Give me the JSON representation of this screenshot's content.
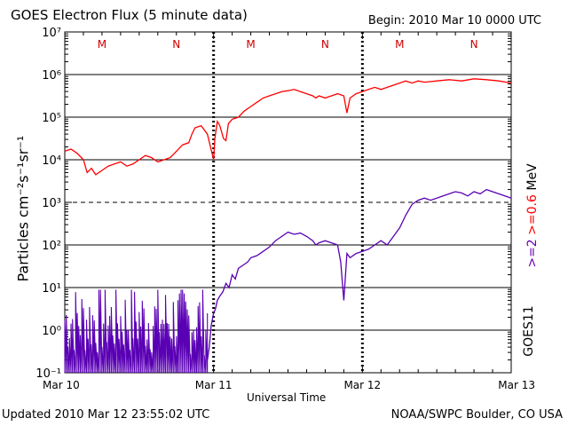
{
  "header": {
    "title": "GOES Electron Flux (5 minute data)",
    "begin": "Begin: 2010 Mar 10 0000 UTC"
  },
  "footer": {
    "updated": "Updated 2010 Mar 12 23:55:02 UTC",
    "credit": "NOAA/SWPC Boulder, CO USA"
  },
  "axis": {
    "xlabel": "Universal Time",
    "ylabel": "Particles cm⁻²s⁻¹sr⁻¹",
    "right_label_1": ">=2",
    "right_label_2": ">=0.6",
    "right_label_3": "MeV",
    "satellite": "GOES11"
  },
  "colors": {
    "low_energy": "#ff0000",
    "high_energy": "#5a00b4",
    "right_label_1": "#6a00b4",
    "right_label_2": "#ff0000",
    "right_label_3": "#000000",
    "marker_text": "#cc0000"
  },
  "chart_data": {
    "type": "line",
    "title": "GOES Electron Flux (5 minute data)",
    "xlabel": "Universal Time",
    "ylabel": "Particles cm⁻²s⁻¹sr⁻¹",
    "x_ticks": [
      "Mar 10",
      "Mar 11",
      "Mar 12",
      "Mar 13"
    ],
    "y_ticks": [
      "10⁻¹",
      "10⁰",
      "10¹",
      "10²",
      "10³",
      "10⁴",
      "10⁵",
      "10⁶",
      "10⁷"
    ],
    "xlim_hours": [
      0,
      72
    ],
    "ylim_log10": [
      -1,
      7
    ],
    "y_scale": "log",
    "threshold_log10": 3,
    "markers": [
      {
        "label": "M",
        "hour": 6
      },
      {
        "label": "N",
        "hour": 18
      },
      {
        "label": "M",
        "hour": 30
      },
      {
        "label": "N",
        "hour": 42
      },
      {
        "label": "M",
        "hour": 54
      },
      {
        "label": "N",
        "hour": 66
      }
    ],
    "series": [
      {
        "name": ">=0.6 MeV",
        "points": [
          [
            0,
            4.2
          ],
          [
            1,
            4.25
          ],
          [
            2,
            4.15
          ],
          [
            3,
            4.0
          ],
          [
            3.6,
            3.7
          ],
          [
            4.3,
            3.8
          ],
          [
            5,
            3.65
          ],
          [
            6,
            3.75
          ],
          [
            7,
            3.85
          ],
          [
            8,
            3.9
          ],
          [
            9,
            3.95
          ],
          [
            10,
            3.85
          ],
          [
            11,
            3.9
          ],
          [
            12,
            4.0
          ],
          [
            13,
            4.1
          ],
          [
            14,
            4.05
          ],
          [
            15,
            3.95
          ],
          [
            16,
            4.0
          ],
          [
            17,
            4.05
          ],
          [
            18,
            4.2
          ],
          [
            19,
            4.35
          ],
          [
            20,
            4.4
          ],
          [
            20.5,
            4.6
          ],
          [
            21,
            4.75
          ],
          [
            22,
            4.8
          ],
          [
            23,
            4.6
          ],
          [
            24,
            4.0
          ],
          [
            24.2,
            4.5
          ],
          [
            24.6,
            4.9
          ],
          [
            25,
            4.8
          ],
          [
            25.6,
            4.5
          ],
          [
            26,
            4.45
          ],
          [
            26.4,
            4.85
          ],
          [
            27,
            4.95
          ],
          [
            28,
            5.0
          ],
          [
            29,
            5.15
          ],
          [
            30,
            5.25
          ],
          [
            31,
            5.35
          ],
          [
            32,
            5.45
          ],
          [
            33,
            5.5
          ],
          [
            34,
            5.55
          ],
          [
            35,
            5.6
          ],
          [
            36,
            5.62
          ],
          [
            37,
            5.65
          ],
          [
            38,
            5.6
          ],
          [
            39,
            5.55
          ],
          [
            40,
            5.5
          ],
          [
            40.5,
            5.45
          ],
          [
            41,
            5.5
          ],
          [
            42,
            5.45
          ],
          [
            43,
            5.5
          ],
          [
            44,
            5.55
          ],
          [
            45,
            5.5
          ],
          [
            45.5,
            5.1
          ],
          [
            46,
            5.45
          ],
          [
            47,
            5.55
          ],
          [
            48,
            5.6
          ],
          [
            49,
            5.65
          ],
          [
            50,
            5.7
          ],
          [
            51,
            5.65
          ],
          [
            52,
            5.7
          ],
          [
            53,
            5.75
          ],
          [
            54,
            5.8
          ],
          [
            55,
            5.85
          ],
          [
            56,
            5.8
          ],
          [
            57,
            5.85
          ],
          [
            58,
            5.82
          ],
          [
            60,
            5.85
          ],
          [
            62,
            5.88
          ],
          [
            64,
            5.85
          ],
          [
            66,
            5.9
          ],
          [
            68,
            5.88
          ],
          [
            70,
            5.85
          ],
          [
            72,
            5.8
          ]
        ]
      },
      {
        "name": ">=2 MeV",
        "points": [
          [
            23,
            -0.7
          ],
          [
            23.3,
            -0.4
          ],
          [
            23.6,
            0.1
          ],
          [
            24,
            0.4
          ],
          [
            24.3,
            0.5
          ],
          [
            24.6,
            0.7
          ],
          [
            25,
            0.8
          ],
          [
            25.5,
            0.9
          ],
          [
            26,
            1.1
          ],
          [
            26.5,
            1.0
          ],
          [
            27,
            1.3
          ],
          [
            27.5,
            1.2
          ],
          [
            28,
            1.45
          ],
          [
            28.5,
            1.5
          ],
          [
            29,
            1.55
          ],
          [
            29.5,
            1.6
          ],
          [
            30,
            1.7
          ],
          [
            31,
            1.75
          ],
          [
            32,
            1.85
          ],
          [
            33,
            1.95
          ],
          [
            34,
            2.1
          ],
          [
            35,
            2.2
          ],
          [
            36,
            2.3
          ],
          [
            37,
            2.25
          ],
          [
            38,
            2.28
          ],
          [
            39,
            2.2
          ],
          [
            40,
            2.1
          ],
          [
            40.5,
            2.0
          ],
          [
            41,
            2.05
          ],
          [
            42,
            2.1
          ],
          [
            43,
            2.05
          ],
          [
            44,
            2.0
          ],
          [
            44.5,
            1.6
          ],
          [
            45,
            0.7
          ],
          [
            45.5,
            1.8
          ],
          [
            46,
            1.7
          ],
          [
            47,
            1.8
          ],
          [
            48,
            1.85
          ],
          [
            49,
            1.9
          ],
          [
            50,
            2.0
          ],
          [
            51,
            2.1
          ],
          [
            52,
            2.0
          ],
          [
            53,
            2.2
          ],
          [
            54,
            2.4
          ],
          [
            55,
            2.7
          ],
          [
            56,
            2.95
          ],
          [
            57,
            3.05
          ],
          [
            58,
            3.1
          ],
          [
            59,
            3.05
          ],
          [
            60,
            3.1
          ],
          [
            61,
            3.15
          ],
          [
            62,
            3.2
          ],
          [
            63,
            3.25
          ],
          [
            64,
            3.22
          ],
          [
            65,
            3.15
          ],
          [
            66,
            3.25
          ],
          [
            67,
            3.2
          ],
          [
            68,
            3.3
          ],
          [
            69,
            3.25
          ],
          [
            70,
            3.2
          ],
          [
            71,
            3.15
          ],
          [
            72,
            3.1
          ]
        ]
      }
    ]
  }
}
